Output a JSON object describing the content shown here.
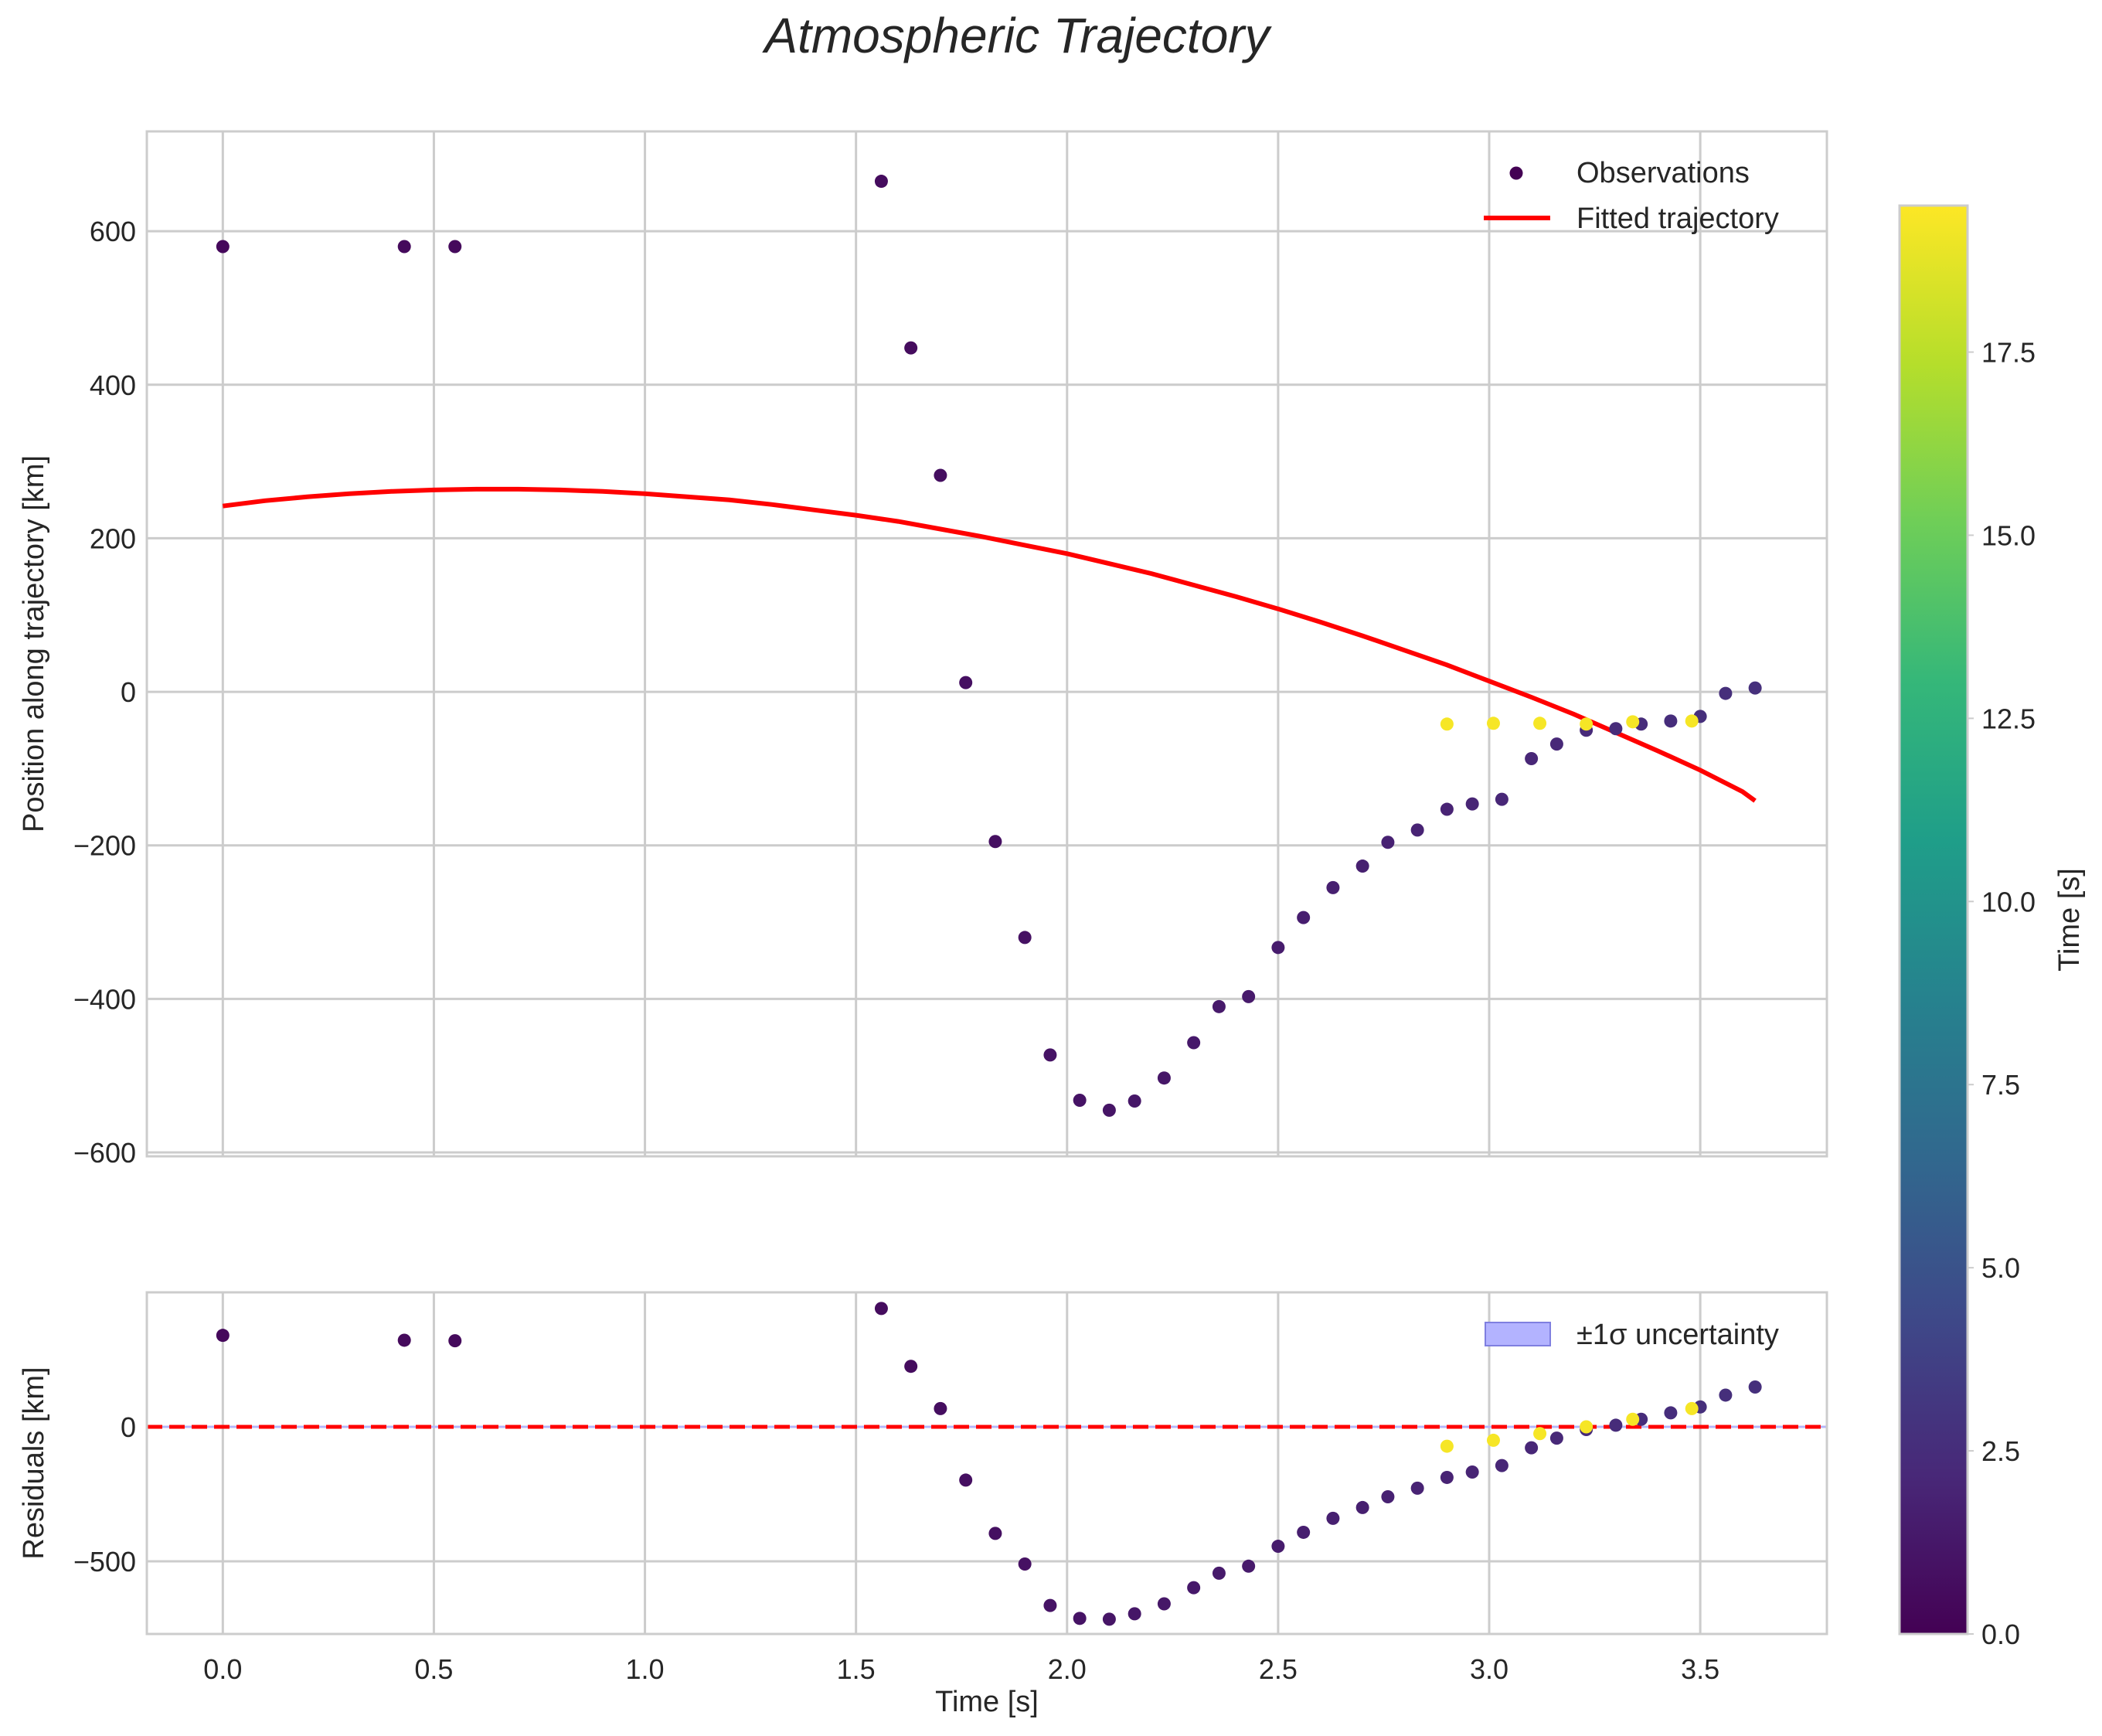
{
  "chart_data": {
    "type": "scatter",
    "title": "Atmospheric Trajectory",
    "colormap": {
      "name": "viridis",
      "label": "Time [s]",
      "range": [
        0.0,
        19.5
      ],
      "ticks": [
        0.0,
        2.5,
        5.0,
        7.5,
        10.0,
        12.5,
        15.0,
        17.5
      ],
      "tick_labels": [
        "0.0",
        "2.5",
        "5.0",
        "7.5",
        "10.0",
        "12.5",
        "15.0",
        "17.5"
      ],
      "stops": [
        "#440154",
        "#482878",
        "#3e4989",
        "#31688e",
        "#26828e",
        "#1f9e89",
        "#35b779",
        "#6ece58",
        "#b5de2b",
        "#fde725"
      ]
    },
    "xlabel": "Time [s]",
    "xlim": [
      -0.18,
      3.8
    ],
    "xticks": [
      0.0,
      0.5,
      1.0,
      1.5,
      2.0,
      2.5,
      3.0,
      3.5
    ],
    "xtick_labels": [
      "0.0",
      "0.5",
      "1.0",
      "1.5",
      "2.0",
      "2.5",
      "3.0",
      "3.5"
    ],
    "top_panel": {
      "ylabel": "Position along trajectory [km]",
      "ylim": [
        -605,
        730
      ],
      "yticks": [
        -600,
        -400,
        -200,
        0,
        200,
        400,
        600
      ],
      "ytick_labels": [
        "−600",
        "−400",
        "−200",
        "0",
        "200",
        "400",
        "600"
      ],
      "legend": {
        "position": "top-right",
        "observations": "Observations",
        "fit": "Fitted trajectory"
      },
      "fit_color": "#ff0000",
      "fit": [
        {
          "x": 0.0,
          "y": 242
        },
        {
          "x": 0.1,
          "y": 249
        },
        {
          "x": 0.2,
          "y": 254
        },
        {
          "x": 0.3,
          "y": 258
        },
        {
          "x": 0.4,
          "y": 261
        },
        {
          "x": 0.5,
          "y": 263
        },
        {
          "x": 0.6,
          "y": 264
        },
        {
          "x": 0.7,
          "y": 264
        },
        {
          "x": 0.8,
          "y": 263
        },
        {
          "x": 0.9,
          "y": 261
        },
        {
          "x": 1.0,
          "y": 258
        },
        {
          "x": 1.1,
          "y": 254
        },
        {
          "x": 1.2,
          "y": 250
        },
        {
          "x": 1.3,
          "y": 244
        },
        {
          "x": 1.4,
          "y": 237
        },
        {
          "x": 1.5,
          "y": 230
        },
        {
          "x": 1.6,
          "y": 222
        },
        {
          "x": 1.7,
          "y": 212
        },
        {
          "x": 1.8,
          "y": 202
        },
        {
          "x": 1.9,
          "y": 191
        },
        {
          "x": 2.0,
          "y": 180
        },
        {
          "x": 2.1,
          "y": 167
        },
        {
          "x": 2.2,
          "y": 154
        },
        {
          "x": 2.3,
          "y": 139
        },
        {
          "x": 2.4,
          "y": 124
        },
        {
          "x": 2.5,
          "y": 108
        },
        {
          "x": 2.6,
          "y": 91
        },
        {
          "x": 2.7,
          "y": 73
        },
        {
          "x": 2.8,
          "y": 54
        },
        {
          "x": 2.9,
          "y": 35
        },
        {
          "x": 3.0,
          "y": 14
        },
        {
          "x": 3.1,
          "y": -7
        },
        {
          "x": 3.2,
          "y": -29
        },
        {
          "x": 3.3,
          "y": -53
        },
        {
          "x": 3.4,
          "y": -77
        },
        {
          "x": 3.5,
          "y": -102
        },
        {
          "x": 3.6,
          "y": -130
        },
        {
          "x": 3.63,
          "y": -142
        }
      ],
      "observations": [
        {
          "x": 0.0,
          "y": 580,
          "t": 0.4
        },
        {
          "x": 0.43,
          "y": 580,
          "t": 0.5
        },
        {
          "x": 0.55,
          "y": 580,
          "t": 0.5
        },
        {
          "x": 1.56,
          "y": 665,
          "t": 0.6
        },
        {
          "x": 1.63,
          "y": 448,
          "t": 0.6
        },
        {
          "x": 1.7,
          "y": 282,
          "t": 0.7
        },
        {
          "x": 1.76,
          "y": 12,
          "t": 0.8
        },
        {
          "x": 1.83,
          "y": -195,
          "t": 0.8
        },
        {
          "x": 1.9,
          "y": -320,
          "t": 0.9
        },
        {
          "x": 1.96,
          "y": -473,
          "t": 1.0
        },
        {
          "x": 2.03,
          "y": -532,
          "t": 1.0
        },
        {
          "x": 2.1,
          "y": -545,
          "t": 1.1
        },
        {
          "x": 2.16,
          "y": -533,
          "t": 1.2
        },
        {
          "x": 2.23,
          "y": -503,
          "t": 1.2
        },
        {
          "x": 2.3,
          "y": -457,
          "t": 1.3
        },
        {
          "x": 2.36,
          "y": -410,
          "t": 1.4
        },
        {
          "x": 2.43,
          "y": -397,
          "t": 1.4
        },
        {
          "x": 2.5,
          "y": -333,
          "t": 1.5
        },
        {
          "x": 2.56,
          "y": -294,
          "t": 1.6
        },
        {
          "x": 2.63,
          "y": -255,
          "t": 1.7
        },
        {
          "x": 2.7,
          "y": -227,
          "t": 1.7
        },
        {
          "x": 2.76,
          "y": -196,
          "t": 1.8
        },
        {
          "x": 2.83,
          "y": -180,
          "t": 1.9
        },
        {
          "x": 2.9,
          "y": -153,
          "t": 1.9
        },
        {
          "x": 2.96,
          "y": -146,
          "t": 2.0
        },
        {
          "x": 3.03,
          "y": -140,
          "t": 2.1
        },
        {
          "x": 3.1,
          "y": -87,
          "t": 2.1
        },
        {
          "x": 3.16,
          "y": -68,
          "t": 2.2
        },
        {
          "x": 3.23,
          "y": -50,
          "t": 2.3
        },
        {
          "x": 3.3,
          "y": -48,
          "t": 2.4
        },
        {
          "x": 3.36,
          "y": -42,
          "t": 2.4
        },
        {
          "x": 3.43,
          "y": -38,
          "t": 2.5
        },
        {
          "x": 3.5,
          "y": -32,
          "t": 2.6
        },
        {
          "x": 3.56,
          "y": -2,
          "t": 2.6
        },
        {
          "x": 3.63,
          "y": 5,
          "t": 2.7
        },
        {
          "x": 2.9,
          "y": -42,
          "t": 19.3
        },
        {
          "x": 3.01,
          "y": -41,
          "t": 19.3
        },
        {
          "x": 3.12,
          "y": -41,
          "t": 19.3
        },
        {
          "x": 3.23,
          "y": -42,
          "t": 19.3
        },
        {
          "x": 3.34,
          "y": -39,
          "t": 19.3
        },
        {
          "x": 3.48,
          "y": -38,
          "t": 19.3
        }
      ]
    },
    "bottom_panel": {
      "ylabel": "Residuals [km]",
      "ylim": [
        -770,
        500
      ],
      "yticks": [
        -500,
        0
      ],
      "ytick_labels": [
        "−500",
        "0"
      ],
      "zero_line_color": "#ff0000",
      "band_color": "#b3b3ff",
      "band_edge_color": "#7f7fe0",
      "band_halfwidth": 4,
      "legend": {
        "position": "top-right",
        "band": "±1σ uncertainty"
      },
      "residuals": [
        {
          "x": 0.0,
          "y": 340,
          "t": 0.4
        },
        {
          "x": 0.43,
          "y": 322,
          "t": 0.5
        },
        {
          "x": 0.55,
          "y": 320,
          "t": 0.5
        },
        {
          "x": 1.56,
          "y": 440,
          "t": 0.6
        },
        {
          "x": 1.63,
          "y": 225,
          "t": 0.6
        },
        {
          "x": 1.7,
          "y": 68,
          "t": 0.7
        },
        {
          "x": 1.76,
          "y": -198,
          "t": 0.8
        },
        {
          "x": 1.83,
          "y": -396,
          "t": 0.8
        },
        {
          "x": 1.9,
          "y": -510,
          "t": 0.9
        },
        {
          "x": 1.96,
          "y": -664,
          "t": 1.0
        },
        {
          "x": 2.03,
          "y": -712,
          "t": 1.0
        },
        {
          "x": 2.1,
          "y": -715,
          "t": 1.1
        },
        {
          "x": 2.16,
          "y": -695,
          "t": 1.2
        },
        {
          "x": 2.23,
          "y": -658,
          "t": 1.2
        },
        {
          "x": 2.3,
          "y": -598,
          "t": 1.3
        },
        {
          "x": 2.36,
          "y": -544,
          "t": 1.4
        },
        {
          "x": 2.43,
          "y": -518,
          "t": 1.4
        },
        {
          "x": 2.5,
          "y": -444,
          "t": 1.5
        },
        {
          "x": 2.56,
          "y": -392,
          "t": 1.6
        },
        {
          "x": 2.63,
          "y": -340,
          "t": 1.7
        },
        {
          "x": 2.7,
          "y": -300,
          "t": 1.7
        },
        {
          "x": 2.76,
          "y": -260,
          "t": 1.8
        },
        {
          "x": 2.83,
          "y": -228,
          "t": 1.9
        },
        {
          "x": 2.9,
          "y": -188,
          "t": 1.9
        },
        {
          "x": 2.96,
          "y": -168,
          "t": 2.0
        },
        {
          "x": 3.03,
          "y": -144,
          "t": 2.1
        },
        {
          "x": 3.1,
          "y": -78,
          "t": 2.1
        },
        {
          "x": 3.16,
          "y": -42,
          "t": 2.2
        },
        {
          "x": 3.23,
          "y": -10,
          "t": 2.3
        },
        {
          "x": 3.3,
          "y": 6,
          "t": 2.4
        },
        {
          "x": 3.36,
          "y": 28,
          "t": 2.4
        },
        {
          "x": 3.43,
          "y": 52,
          "t": 2.5
        },
        {
          "x": 3.5,
          "y": 74,
          "t": 2.6
        },
        {
          "x": 3.56,
          "y": 118,
          "t": 2.6
        },
        {
          "x": 3.63,
          "y": 148,
          "t": 2.7
        },
        {
          "x": 2.9,
          "y": -72,
          "t": 19.3
        },
        {
          "x": 3.01,
          "y": -50,
          "t": 19.3
        },
        {
          "x": 3.12,
          "y": -25,
          "t": 19.3
        },
        {
          "x": 3.23,
          "y": 0,
          "t": 19.3
        },
        {
          "x": 3.34,
          "y": 28,
          "t": 19.3
        },
        {
          "x": 3.48,
          "y": 68,
          "t": 19.3
        }
      ]
    }
  }
}
